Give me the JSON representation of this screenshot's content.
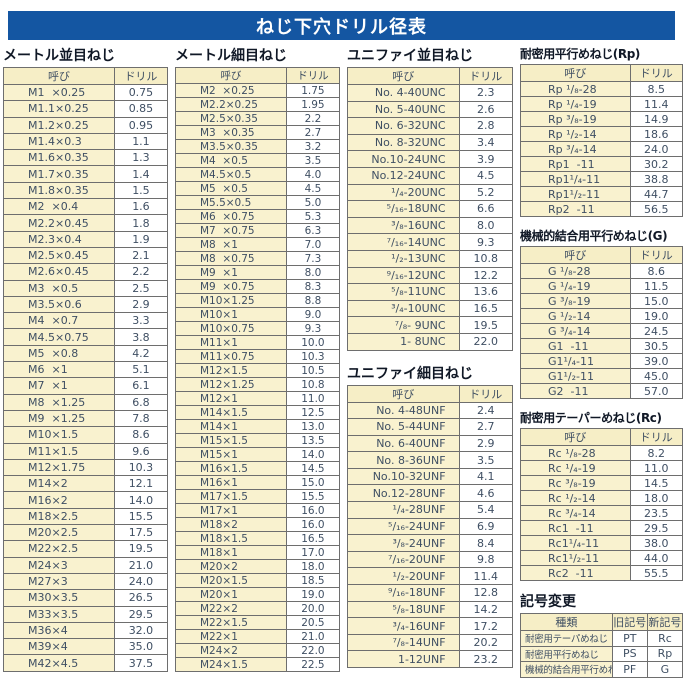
{
  "page_title": "ねじ下穴ドリル径表",
  "colors": {
    "title_bar_bg": "#1456a2",
    "title_bar_text": "#ffffff",
    "header_cell_bg": "#f6eec6",
    "name_cell_bg": "#f9f2cf",
    "border": "#6e6e6e",
    "text": "#3f4f63"
  },
  "tables": {
    "metric_coarse": {
      "title": "メートル並目ねじ",
      "headers": [
        "呼び",
        "ドリル"
      ],
      "rows": [
        [
          "M1  ×0.25",
          "0.75"
        ],
        [
          "M1.1×0.25",
          "0.85"
        ],
        [
          "M1.2×0.25",
          "0.95"
        ],
        [
          "M1.4×0.3",
          "1.1"
        ],
        [
          "M1.6×0.35",
          "1.3"
        ],
        [
          "M1.7×0.35",
          "1.4"
        ],
        [
          "M1.8×0.35",
          "1.5"
        ],
        [
          "M2  ×0.4",
          "1.6"
        ],
        [
          "M2.2×0.45",
          "1.8"
        ],
        [
          "M2.3×0.4",
          "1.9"
        ],
        [
          "M2.5×0.45",
          "2.1"
        ],
        [
          "M2.6×0.45",
          "2.2"
        ],
        [
          "M3  ×0.5",
          "2.5"
        ],
        [
          "M3.5×0.6",
          "2.9"
        ],
        [
          "M4  ×0.7",
          "3.3"
        ],
        [
          "M4.5×0.75",
          "3.8"
        ],
        [
          "M5  ×0.8",
          "4.2"
        ],
        [
          "M6  ×1",
          "5.1"
        ],
        [
          "M7  ×1",
          "6.1"
        ],
        [
          "M8  ×1.25",
          "6.8"
        ],
        [
          "M9  ×1.25",
          "7.8"
        ],
        [
          "M10×1.5",
          "8.6"
        ],
        [
          "M11×1.5",
          "9.6"
        ],
        [
          "M12×1.75",
          "10.3"
        ],
        [
          "M14×2",
          "12.1"
        ],
        [
          "M16×2",
          "14.0"
        ],
        [
          "M18×2.5",
          "15.5"
        ],
        [
          "M20×2.5",
          "17.5"
        ],
        [
          "M22×2.5",
          "19.5"
        ],
        [
          "M24×3",
          "21.0"
        ],
        [
          "M27×3",
          "24.0"
        ],
        [
          "M30×3.5",
          "26.5"
        ],
        [
          "M33×3.5",
          "29.5"
        ],
        [
          "M36×4",
          "32.0"
        ],
        [
          "M39×4",
          "35.0"
        ],
        [
          "M42×4.5",
          "37.5"
        ]
      ]
    },
    "metric_fine": {
      "title": "メートル細目ねじ",
      "headers": [
        "呼び",
        "ドリル"
      ],
      "rows": [
        [
          "M2  ×0.25",
          "1.75"
        ],
        [
          "M2.2×0.25",
          "1.95"
        ],
        [
          "M2.5×0.35",
          "2.2"
        ],
        [
          "M3  ×0.35",
          "2.7"
        ],
        [
          "M3.5×0.35",
          "3.2"
        ],
        [
          "M4  ×0.5",
          "3.5"
        ],
        [
          "M4.5×0.5",
          "4.0"
        ],
        [
          "M5  ×0.5",
          "4.5"
        ],
        [
          "M5.5×0.5",
          "5.0"
        ],
        [
          "M6  ×0.75",
          "5.3"
        ],
        [
          "M7  ×0.75",
          "6.3"
        ],
        [
          "M8  ×1",
          "7.0"
        ],
        [
          "M8  ×0.75",
          "7.3"
        ],
        [
          "M9  ×1",
          "8.0"
        ],
        [
          "M9  ×0.75",
          "8.3"
        ],
        [
          "M10×1.25",
          "8.8"
        ],
        [
          "M10×1",
          "9.0"
        ],
        [
          "M10×0.75",
          "9.3"
        ],
        [
          "M11×1",
          "10.0"
        ],
        [
          "M11×0.75",
          "10.3"
        ],
        [
          "M12×1.5",
          "10.5"
        ],
        [
          "M12×1.25",
          "10.8"
        ],
        [
          "M12×1",
          "11.0"
        ],
        [
          "M14×1.5",
          "12.5"
        ],
        [
          "M14×1",
          "13.0"
        ],
        [
          "M15×1.5",
          "13.5"
        ],
        [
          "M15×1",
          "14.0"
        ],
        [
          "M16×1.5",
          "14.5"
        ],
        [
          "M16×1",
          "15.0"
        ],
        [
          "M17×1.5",
          "15.5"
        ],
        [
          "M17×1",
          "16.0"
        ],
        [
          "M18×2",
          "16.0"
        ],
        [
          "M18×1.5",
          "16.5"
        ],
        [
          "M18×1",
          "17.0"
        ],
        [
          "M20×2",
          "18.0"
        ],
        [
          "M20×1.5",
          "18.5"
        ],
        [
          "M20×1",
          "19.0"
        ],
        [
          "M22×2",
          "20.0"
        ],
        [
          "M22×1.5",
          "20.5"
        ],
        [
          "M22×1",
          "21.0"
        ],
        [
          "M24×2",
          "22.0"
        ],
        [
          "M24×1.5",
          "22.5"
        ]
      ]
    },
    "unified_coarse": {
      "title": "ユニファイ並目ねじ",
      "headers": [
        "呼び",
        "ドリル"
      ],
      "rows": [
        [
          "No. 4-40UNC",
          "2.3"
        ],
        [
          "No. 5-40UNC",
          "2.6"
        ],
        [
          "No. 6-32UNC",
          "2.8"
        ],
        [
          "No. 8-32UNC",
          "3.4"
        ],
        [
          "No.10-24UNC",
          "3.9"
        ],
        [
          "No.12-24UNC",
          "4.5"
        ],
        [
          "¹/₄-20UNC",
          "5.2"
        ],
        [
          "⁵/₁₆-18UNC",
          "6.6"
        ],
        [
          "³/₈-16UNC",
          "8.0"
        ],
        [
          "⁷/₁₆-14UNC",
          "9.3"
        ],
        [
          "¹/₂-13UNC",
          "10.8"
        ],
        [
          "⁹/₁₆-12UNC",
          "12.2"
        ],
        [
          "⁵/₈-11UNC",
          "13.6"
        ],
        [
          "³/₄-10UNC",
          "16.5"
        ],
        [
          "⁷/₈- 9UNC",
          "19.5"
        ],
        [
          "1- 8UNC",
          "22.0"
        ]
      ]
    },
    "unified_fine": {
      "title": "ユニファイ細目ねじ",
      "headers": [
        "呼び",
        "ドリル"
      ],
      "rows": [
        [
          "No. 4-48UNF",
          "2.4"
        ],
        [
          "No. 5-44UNF",
          "2.7"
        ],
        [
          "No. 6-40UNF",
          "2.9"
        ],
        [
          "No. 8-36UNF",
          "3.5"
        ],
        [
          "No.10-32UNF",
          "4.1"
        ],
        [
          "No.12-28UNF",
          "4.6"
        ],
        [
          "¹/₄-28UNF",
          "5.4"
        ],
        [
          "⁵/₁₆-24UNF",
          "6.9"
        ],
        [
          "³/₈-24UNF",
          "8.4"
        ],
        [
          "⁷/₁₆-20UNF",
          "9.8"
        ],
        [
          "¹/₂-20UNF",
          "11.4"
        ],
        [
          "⁹/₁₆-18UNF",
          "12.8"
        ],
        [
          "⁵/₈-18UNF",
          "14.2"
        ],
        [
          "³/₄-16UNF",
          "17.2"
        ],
        [
          "⁷/₈-14UNF",
          "20.2"
        ],
        [
          "1-12UNF",
          "23.2"
        ]
      ]
    },
    "rp": {
      "title": "耐密用平行めねじ(Rp)",
      "headers": [
        "呼び",
        "ドリル"
      ],
      "rows": [
        [
          "Rp ¹/₈-28",
          "8.5"
        ],
        [
          "Rp ¹/₄-19",
          "11.4"
        ],
        [
          "Rp ³/₈-19",
          "14.9"
        ],
        [
          "Rp ¹/₂-14",
          "18.6"
        ],
        [
          "Rp ³/₄-14",
          "24.0"
        ],
        [
          "Rp1  -11",
          "30.2"
        ],
        [
          "Rp1¹/₄-11",
          "38.8"
        ],
        [
          "Rp1¹/₂-11",
          "44.7"
        ],
        [
          "Rp2  -11",
          "56.5"
        ]
      ]
    },
    "g": {
      "title": "機械的結合用平行めねじ(G)",
      "headers": [
        "呼び",
        "ドリル"
      ],
      "rows": [
        [
          "G ¹/₈-28",
          "8.6"
        ],
        [
          "G ¹/₄-19",
          "11.5"
        ],
        [
          "G ³/₈-19",
          "15.0"
        ],
        [
          "G ¹/₂-14",
          "19.0"
        ],
        [
          "G ³/₄-14",
          "24.5"
        ],
        [
          "G1  -11",
          "30.5"
        ],
        [
          "G1¹/₄-11",
          "39.0"
        ],
        [
          "G1¹/₂-11",
          "45.0"
        ],
        [
          "G2  -11",
          "57.0"
        ]
      ]
    },
    "rc": {
      "title": "耐密用テーパーめねじ(Rc)",
      "headers": [
        "呼び",
        "ドリル"
      ],
      "rows": [
        [
          "Rc ¹/₈-28",
          "8.2"
        ],
        [
          "Rc ¹/₄-19",
          "11.0"
        ],
        [
          "Rc ³/₈-19",
          "14.5"
        ],
        [
          "Rc ¹/₂-14",
          "18.0"
        ],
        [
          "Rc ³/₄-14",
          "23.5"
        ],
        [
          "Rc1  -11",
          "29.5"
        ],
        [
          "Rc1¹/₄-11",
          "38.0"
        ],
        [
          "Rc1¹/₂-11",
          "44.0"
        ],
        [
          "Rc2  -11",
          "55.5"
        ]
      ]
    },
    "symbol_change": {
      "title": "記号変更",
      "headers": [
        "種類",
        "旧記号",
        "新記号"
      ],
      "rows": [
        [
          "耐密用テーパめねじ",
          "PT",
          "Rc"
        ],
        [
          "耐密用平行めねじ",
          "PS",
          "Rp"
        ],
        [
          "機械的結合用平行めねじ",
          "PF",
          "G"
        ]
      ]
    }
  }
}
